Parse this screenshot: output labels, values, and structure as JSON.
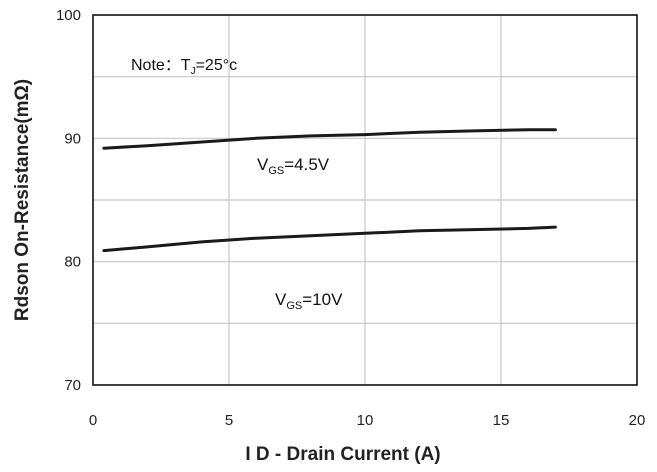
{
  "chart_data": {
    "type": "line",
    "title": "",
    "xlabel": "I D - Drain Current (A)",
    "ylabel": "Rdson On-Resistance(mΩ)",
    "xlim": [
      0,
      20
    ],
    "ylim": [
      70,
      100
    ],
    "xticks": [
      0,
      5,
      10,
      15,
      20
    ],
    "yticks": [
      70,
      80,
      90,
      100
    ],
    "xtick_labels": [
      "0",
      "5",
      "10",
      "15",
      "20"
    ],
    "ytick_labels": [
      "70",
      "80",
      "90",
      "100"
    ],
    "grid": true,
    "line_color": "#1a1a1a",
    "grid_color": "#c8c8c8",
    "series": [
      {
        "x": [
          0.4,
          2,
          4,
          6,
          8,
          10,
          12,
          14,
          16,
          17
        ],
        "y": [
          89.2,
          89.4,
          89.7,
          90.0,
          90.2,
          90.3,
          90.5,
          90.6,
          90.7,
          90.7
        ]
      },
      {
        "x": [
          0.4,
          2,
          4,
          6,
          8,
          10,
          12,
          14,
          16,
          17
        ],
        "y": [
          80.9,
          81.2,
          81.6,
          81.9,
          82.1,
          82.3,
          82.5,
          82.6,
          82.7,
          82.8
        ]
      }
    ],
    "annotations": {
      "note_prefix": "Note：T",
      "note_sub": "J",
      "note_suffix": "=25°c",
      "series_label_1": {
        "main": "V",
        "sub": "GS",
        "suffix": "=4.5V"
      },
      "series_label_2": {
        "main": "V",
        "sub": "GS",
        "suffix": "=10V"
      }
    }
  }
}
